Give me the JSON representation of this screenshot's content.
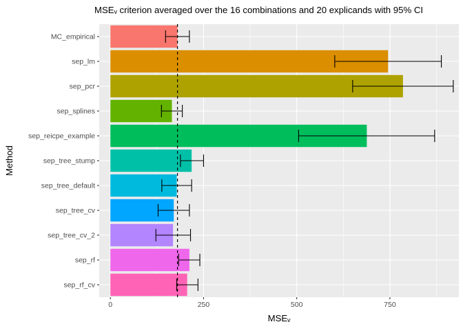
{
  "chart_data": {
    "type": "bar",
    "orientation": "horizontal",
    "title": "MSEᵥ criterion averaged over the 16 combinations and 20 explicands with 95% CI",
    "xlabel": "MSEᵥ",
    "ylabel": "Method",
    "xlim": [
      -30,
      935
    ],
    "x_ticks": [
      0,
      250,
      500,
      750
    ],
    "x_tick_labels": [
      "0",
      "250",
      "500",
      "750"
    ],
    "x_minor_ticks": [
      125,
      375,
      625,
      875
    ],
    "grid": true,
    "legend": "none",
    "reference_line": {
      "value": 180,
      "style": "dashed"
    },
    "categories": [
      "MC_empirical",
      "sep_lm",
      "sep_pcr",
      "sep_splines",
      "sep_reicpe_example",
      "sep_tree_stump",
      "sep_tree_default",
      "sep_tree_cv",
      "sep_tree_cv_2",
      "sep_rf",
      "sep_rf_cv"
    ],
    "values": [
      180,
      745,
      785,
      165,
      688,
      218,
      178,
      170,
      168,
      212,
      206
    ],
    "ci_low": [
      148,
      602,
      650,
      137,
      505,
      188,
      138,
      128,
      122,
      183,
      178
    ],
    "ci_high": [
      212,
      888,
      920,
      193,
      870,
      250,
      218,
      212,
      215,
      240,
      235
    ],
    "colors": [
      "#F8766D",
      "#DB8E00",
      "#AEA200",
      "#64B200",
      "#00BD5C",
      "#00C1A7",
      "#00BADE",
      "#00A6FF",
      "#B385FF",
      "#EF67EB",
      "#FF63B6"
    ]
  }
}
